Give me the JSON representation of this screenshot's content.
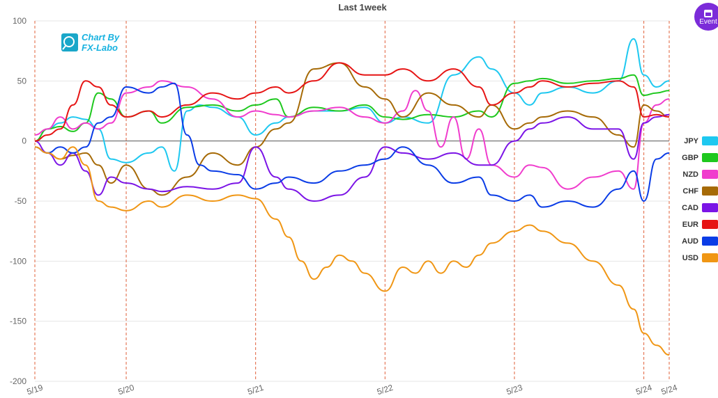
{
  "event_button": {
    "label": "Event",
    "icon": "calendar-icon",
    "color": "#7b2bd9"
  },
  "logo": {
    "line1": "Chart By",
    "line2": "FX-Labo"
  },
  "chart_data": {
    "type": "line",
    "title": "Last 1week",
    "xlabel": "",
    "ylabel": "",
    "ylim": [
      -200,
      100
    ],
    "xlim": [
      0,
      5
    ],
    "yticks": [
      -200,
      -150,
      -100,
      -50,
      0,
      50,
      100
    ],
    "grid": true,
    "legend_position": "right",
    "day_markers": [
      {
        "x": 0,
        "label": "5/19"
      },
      {
        "x": 0.72,
        "label": "5/20"
      },
      {
        "x": 1.74,
        "label": "5/21"
      },
      {
        "x": 2.76,
        "label": "5/22"
      },
      {
        "x": 3.78,
        "label": "5/23"
      },
      {
        "x": 4.8,
        "label": "5/24"
      },
      {
        "x": 5.0,
        "label": "5/24"
      }
    ],
    "series": [
      {
        "name": "JPY",
        "color": "#1ec8f0",
        "x": [
          0,
          0.1,
          0.2,
          0.3,
          0.4,
          0.5,
          0.6,
          0.72,
          0.9,
          1.0,
          1.1,
          1.2,
          1.3,
          1.4,
          1.6,
          1.74,
          1.9,
          2.0,
          2.2,
          2.4,
          2.6,
          2.76,
          2.9,
          3.1,
          3.3,
          3.5,
          3.6,
          3.78,
          3.9,
          4.0,
          4.2,
          4.4,
          4.6,
          4.72,
          4.8,
          4.9,
          5.0
        ],
        "y": [
          0,
          10,
          15,
          20,
          18,
          10,
          -15,
          -18,
          -10,
          -5,
          -25,
          25,
          30,
          28,
          20,
          5,
          15,
          20,
          25,
          25,
          28,
          15,
          20,
          15,
          55,
          70,
          60,
          40,
          30,
          40,
          45,
          40,
          50,
          85,
          55,
          45,
          50
        ]
      },
      {
        "name": "GBP",
        "color": "#1ec81e",
        "x": [
          0,
          0.1,
          0.2,
          0.3,
          0.4,
          0.5,
          0.6,
          0.72,
          0.9,
          1.0,
          1.2,
          1.4,
          1.6,
          1.74,
          1.9,
          2.0,
          2.2,
          2.4,
          2.6,
          2.76,
          2.9,
          3.1,
          3.3,
          3.5,
          3.6,
          3.78,
          3.9,
          4.0,
          4.2,
          4.4,
          4.6,
          4.72,
          4.8,
          4.9,
          5.0
        ],
        "y": [
          0,
          10,
          12,
          8,
          15,
          40,
          35,
          20,
          25,
          15,
          28,
          30,
          25,
          30,
          35,
          20,
          28,
          25,
          30,
          20,
          18,
          22,
          20,
          25,
          20,
          48,
          50,
          52,
          48,
          50,
          52,
          55,
          38,
          40,
          42
        ]
      },
      {
        "name": "NZD",
        "color": "#f03ccd",
        "x": [
          0,
          0.1,
          0.2,
          0.3,
          0.4,
          0.5,
          0.6,
          0.72,
          0.9,
          1.0,
          1.2,
          1.4,
          1.6,
          1.74,
          1.9,
          2.0,
          2.2,
          2.4,
          2.6,
          2.76,
          2.9,
          3.0,
          3.1,
          3.2,
          3.3,
          3.4,
          3.5,
          3.6,
          3.78,
          3.9,
          4.0,
          4.2,
          4.4,
          4.6,
          4.72,
          4.8,
          4.9,
          5.0
        ],
        "y": [
          5,
          10,
          20,
          10,
          15,
          10,
          15,
          40,
          45,
          50,
          45,
          35,
          20,
          25,
          22,
          20,
          25,
          28,
          20,
          15,
          25,
          42,
          25,
          -5,
          20,
          -15,
          10,
          -20,
          -30,
          -20,
          -22,
          -40,
          -30,
          -25,
          -40,
          15,
          30,
          35
        ]
      },
      {
        "name": "CHF",
        "color": "#a66a06",
        "x": [
          0,
          0.1,
          0.2,
          0.3,
          0.4,
          0.5,
          0.6,
          0.72,
          0.9,
          1.0,
          1.2,
          1.4,
          1.6,
          1.74,
          1.9,
          2.0,
          2.2,
          2.4,
          2.6,
          2.76,
          2.9,
          3.1,
          3.3,
          3.5,
          3.6,
          3.78,
          3.9,
          4.0,
          4.2,
          4.4,
          4.6,
          4.72,
          4.8,
          4.9,
          5.0
        ],
        "y": [
          -5,
          -10,
          -15,
          -12,
          -10,
          -20,
          -35,
          -20,
          -40,
          -45,
          -30,
          -10,
          -20,
          -5,
          10,
          15,
          60,
          65,
          45,
          35,
          20,
          40,
          30,
          20,
          30,
          10,
          15,
          20,
          25,
          20,
          5,
          -5,
          30,
          25,
          20
        ]
      },
      {
        "name": "CAD",
        "color": "#7b14e6",
        "x": [
          0,
          0.1,
          0.2,
          0.3,
          0.4,
          0.5,
          0.6,
          0.72,
          0.9,
          1.0,
          1.2,
          1.4,
          1.6,
          1.74,
          1.9,
          2.0,
          2.2,
          2.4,
          2.6,
          2.76,
          2.9,
          3.1,
          3.3,
          3.5,
          3.6,
          3.78,
          3.9,
          4.0,
          4.2,
          4.4,
          4.6,
          4.72,
          4.8,
          4.9,
          5.0
        ],
        "y": [
          0,
          -10,
          -20,
          -10,
          -25,
          -45,
          -30,
          -35,
          -40,
          -42,
          -38,
          -40,
          -35,
          -5,
          -30,
          -40,
          -50,
          -45,
          -30,
          -5,
          -10,
          -15,
          -10,
          -20,
          -20,
          0,
          10,
          15,
          20,
          10,
          10,
          -15,
          15,
          20,
          22
        ]
      },
      {
        "name": "EUR",
        "color": "#e61414",
        "x": [
          0,
          0.1,
          0.2,
          0.3,
          0.4,
          0.5,
          0.6,
          0.72,
          0.9,
          1.0,
          1.2,
          1.4,
          1.6,
          1.74,
          1.9,
          2.0,
          2.2,
          2.4,
          2.6,
          2.76,
          2.9,
          3.1,
          3.3,
          3.5,
          3.6,
          3.78,
          3.9,
          4.0,
          4.2,
          4.4,
          4.6,
          4.72,
          4.8,
          4.9,
          5.0
        ],
        "y": [
          0,
          5,
          10,
          30,
          50,
          45,
          30,
          20,
          25,
          20,
          30,
          40,
          35,
          40,
          45,
          40,
          50,
          65,
          55,
          55,
          60,
          50,
          60,
          45,
          30,
          40,
          45,
          50,
          45,
          48,
          50,
          45,
          20,
          22,
          20
        ]
      },
      {
        "name": "AUD",
        "color": "#0a3ce6",
        "x": [
          0,
          0.1,
          0.2,
          0.3,
          0.4,
          0.5,
          0.6,
          0.72,
          0.9,
          1.0,
          1.1,
          1.2,
          1.3,
          1.4,
          1.6,
          1.74,
          1.9,
          2.0,
          2.2,
          2.4,
          2.6,
          2.76,
          2.9,
          3.1,
          3.3,
          3.5,
          3.6,
          3.78,
          3.9,
          4.0,
          4.2,
          4.4,
          4.6,
          4.72,
          4.8,
          4.9,
          5.0
        ],
        "y": [
          -5,
          -10,
          -5,
          -10,
          -5,
          15,
          20,
          45,
          40,
          45,
          48,
          5,
          -20,
          -25,
          -28,
          -40,
          -35,
          -30,
          -35,
          -25,
          -20,
          -15,
          -5,
          -20,
          -35,
          -30,
          -45,
          -50,
          -45,
          -55,
          -50,
          -55,
          -40,
          -25,
          -50,
          -15,
          -10
        ]
      },
      {
        "name": "USD",
        "color": "#f09614",
        "x": [
          0,
          0.1,
          0.2,
          0.3,
          0.4,
          0.5,
          0.6,
          0.72,
          0.9,
          1.0,
          1.2,
          1.4,
          1.6,
          1.74,
          1.9,
          2.0,
          2.1,
          2.2,
          2.3,
          2.4,
          2.5,
          2.6,
          2.76,
          2.9,
          3.0,
          3.1,
          3.2,
          3.3,
          3.4,
          3.5,
          3.6,
          3.78,
          3.9,
          4.0,
          4.2,
          4.4,
          4.6,
          4.72,
          4.8,
          4.9,
          5.0
        ],
        "y": [
          -5,
          -10,
          -15,
          -5,
          -20,
          -50,
          -55,
          -58,
          -50,
          -55,
          -45,
          -50,
          -45,
          -48,
          -65,
          -80,
          -100,
          -115,
          -105,
          -95,
          -100,
          -110,
          -125,
          -105,
          -110,
          -100,
          -110,
          -100,
          -105,
          -95,
          -85,
          -75,
          -70,
          -75,
          -85,
          -100,
          -120,
          -140,
          -160,
          -170,
          -178
        ]
      }
    ]
  }
}
